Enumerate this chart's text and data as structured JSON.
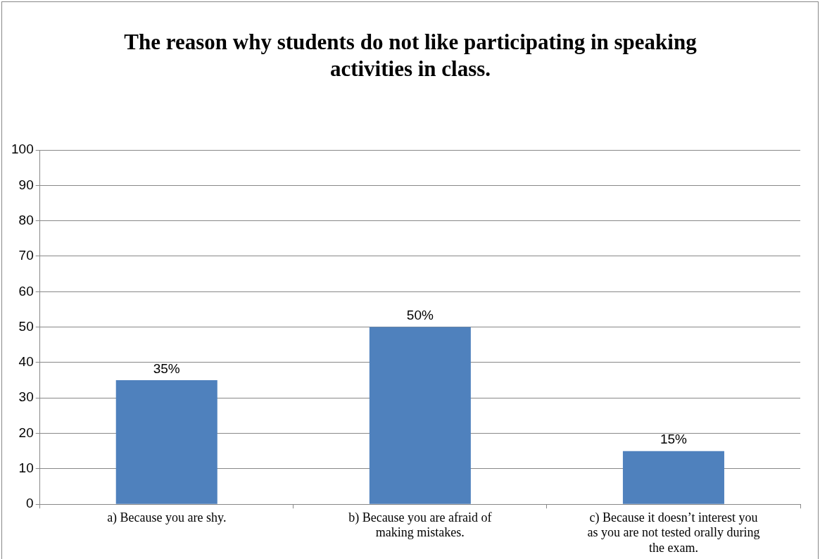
{
  "chart_data": {
    "type": "bar",
    "title": "The reason why students do not like participating in speaking activities in class.",
    "categories": [
      "a) Because you are shy.",
      "b) Because you are afraid of making mistakes.",
      "c) Because it doesn’t interest you as you are not tested orally during the exam."
    ],
    "values": [
      35,
      50,
      15
    ],
    "color": "#4f81bd",
    "value_labels": [
      "35%",
      "50%",
      "15%"
    ],
    "ylim": [
      0,
      100
    ],
    "yticks": [
      0,
      10,
      20,
      30,
      40,
      50,
      60,
      70,
      80,
      90,
      100
    ],
    "grid": "y"
  }
}
